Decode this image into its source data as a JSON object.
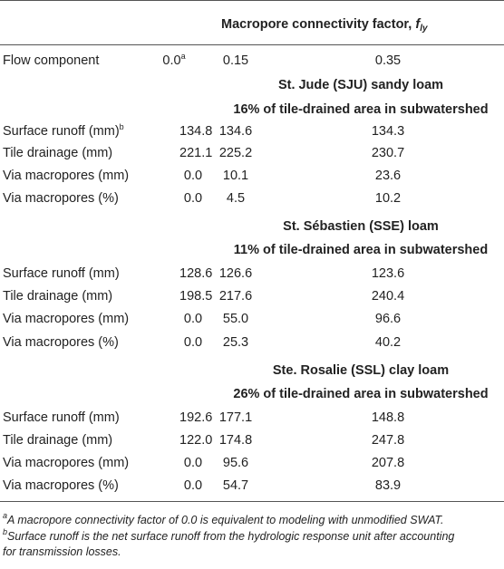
{
  "header": {
    "factor_label": "Macropore connectivity factor, ",
    "factor_symbol": "f",
    "factor_subscript": "ly"
  },
  "columns_row": {
    "label": "Flow component",
    "c1": "0.0",
    "c1_sup": "a",
    "c2": "0.15",
    "c3": "0.35"
  },
  "sections": [
    {
      "title": "St. Jude (SJU) sandy loam",
      "subtitle": "16% of tile-drained area in subwatershed",
      "rows": [
        {
          "label": "Surface runoff (mm)",
          "sup": "b",
          "c1": "134.8",
          "c2": "134.6",
          "c3": "134.3"
        },
        {
          "label": "Tile drainage (mm)",
          "sup": "",
          "c1": "221.1",
          "c2": "225.2",
          "c3": "230.7"
        },
        {
          "label": "Via macropores (mm)",
          "sup": "",
          "c1": "0.0",
          "c2": "10.1",
          "c3": "23.6"
        },
        {
          "label": "Via macropores (%)",
          "sup": "",
          "c1": "0.0",
          "c2": "4.5",
          "c3": "10.2"
        }
      ]
    },
    {
      "title": "St. Sébastien (SSE) loam",
      "subtitle": "11% of tile-drained area in subwatershed",
      "rows": [
        {
          "label": "Surface runoff (mm)",
          "sup": "",
          "c1": "128.6",
          "c2": "126.6",
          "c3": "123.6"
        },
        {
          "label": "Tile drainage (mm)",
          "sup": "",
          "c1": "198.5",
          "c2": "217.6",
          "c3": "240.4"
        },
        {
          "label": "Via macropores (mm)",
          "sup": "",
          "c1": "0.0",
          "c2": "55.0",
          "c3": "96.6"
        },
        {
          "label": "Via macropores (%)",
          "sup": "",
          "c1": "0.0",
          "c2": "25.3",
          "c3": "40.2"
        }
      ]
    },
    {
      "title": "Ste. Rosalie (SSL) clay loam",
      "subtitle": "26% of tile-drained area in subwatershed",
      "rows": [
        {
          "label": "Surface runoff (mm)",
          "sup": "",
          "c1": "192.6",
          "c2": "177.1",
          "c3": "148.8"
        },
        {
          "label": "Tile drainage (mm)",
          "sup": "",
          "c1": "122.0",
          "c2": "174.8",
          "c3": "247.8"
        },
        {
          "label": "Via macropores (mm)",
          "sup": "",
          "c1": "0.0",
          "c2": "95.6",
          "c3": "207.8"
        },
        {
          "label": "Via macropores (%)",
          "sup": "",
          "c1": "0.0",
          "c2": "54.7",
          "c3": "83.9"
        }
      ]
    }
  ],
  "footnotes": [
    {
      "mark": "a",
      "text": "A macropore connectivity factor of 0.0 is equivalent to modeling with unmodified SWAT."
    },
    {
      "mark": "b",
      "text": "Surface runoff is the net surface runoff from the hydrologic response unit after accounting"
    },
    {
      "mark": "",
      "text": "for transmission losses."
    }
  ]
}
